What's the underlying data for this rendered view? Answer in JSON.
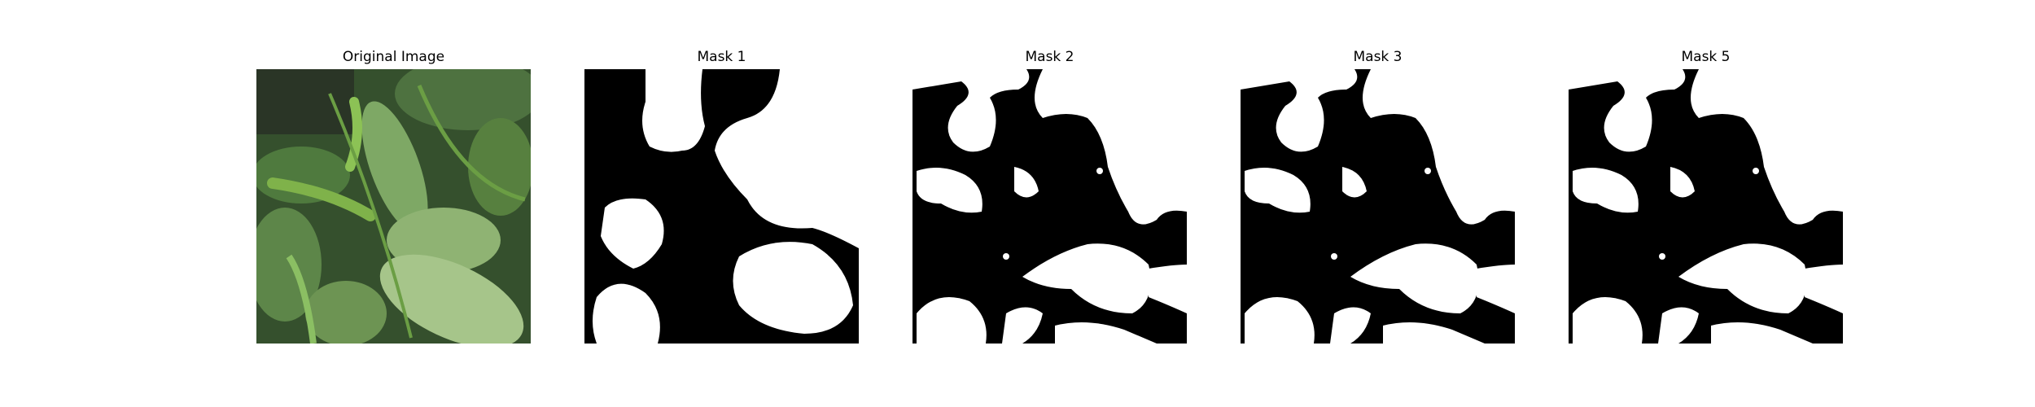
{
  "panels": [
    {
      "title": "Original Image",
      "kind": "photo"
    },
    {
      "title": "Mask 1",
      "kind": "mask"
    },
    {
      "title": "Mask 2",
      "kind": "mask"
    },
    {
      "title": "Mask 3",
      "kind": "mask"
    },
    {
      "title": "Mask 5",
      "kind": "mask"
    }
  ],
  "colors": {
    "mask_foreground": "#ffffff",
    "mask_background": "#000000",
    "leaf_dark": "#2f4a2a",
    "leaf_mid": "#5f8a4a",
    "leaf_light": "#9cbf7e",
    "pepper": "#6ea33d"
  }
}
